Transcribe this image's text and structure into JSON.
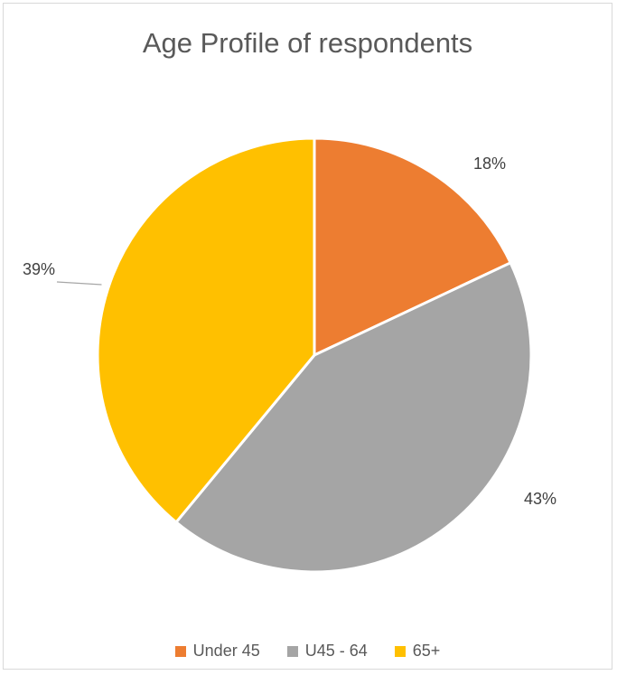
{
  "chart_data": {
    "type": "pie",
    "title": "Age Profile of respondents",
    "categories": [
      "Under 45",
      "U45 - 64",
      "65+"
    ],
    "values": [
      18,
      43,
      39
    ],
    "data_labels": [
      "18%",
      "43%",
      "39%"
    ],
    "colors": [
      "#ed7d31",
      "#a5a5a5",
      "#ffc000"
    ],
    "legend": {
      "position": "bottom"
    }
  }
}
